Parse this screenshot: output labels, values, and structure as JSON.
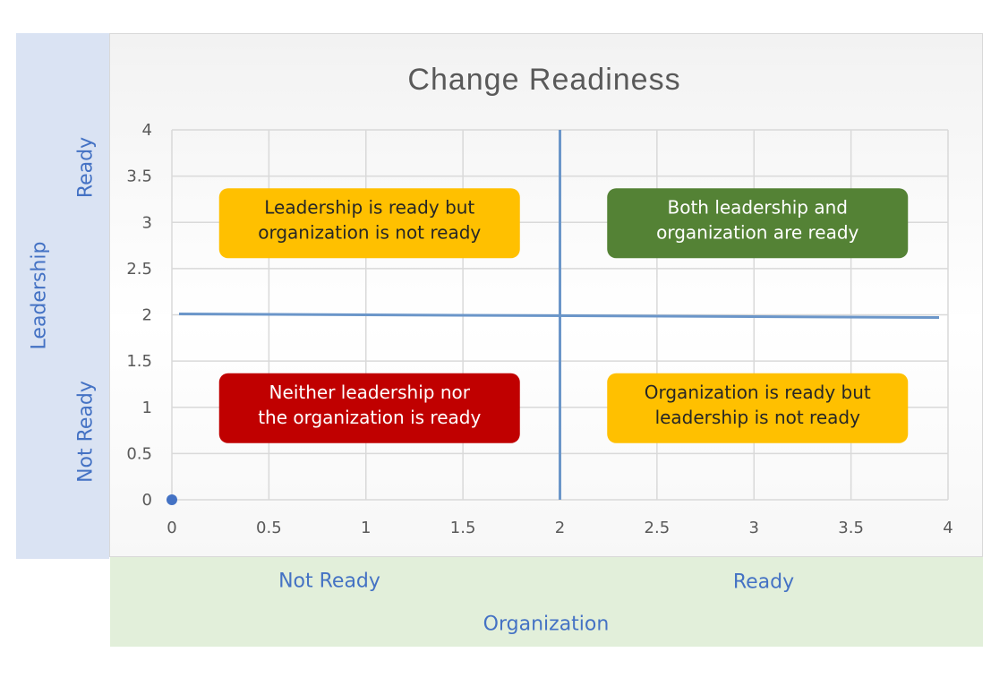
{
  "chart_data": {
    "type": "scatter",
    "title": "Change Readiness",
    "xlabel": "",
    "ylabel": "",
    "xlim": [
      0,
      4
    ],
    "ylim": [
      0,
      4
    ],
    "x_ticks": [
      "0",
      "0.5",
      "1",
      "1.5",
      "2",
      "2.5",
      "3",
      "3.5",
      "4"
    ],
    "y_ticks": [
      "0",
      "0.5",
      "1",
      "1.5",
      "2",
      "2.5",
      "3",
      "3.5",
      "4"
    ],
    "grid": true,
    "points": [
      {
        "x": 0,
        "y": 0
      }
    ],
    "divider_lines": [
      {
        "orientation": "vertical",
        "x": 2
      },
      {
        "orientation": "horizontal",
        "y": 2
      }
    ],
    "quadrants": [
      {
        "text": [
          "Leadership is ready but",
          "organization is not ready"
        ],
        "x": 1,
        "y": 3,
        "color": "#ffc000",
        "text_color": "#262626"
      },
      {
        "text": [
          "Both leadership and",
          "organization are ready"
        ],
        "x": 3,
        "y": 3,
        "color": "#548235",
        "text_color": "#ffffff"
      },
      {
        "text": [
          "Neither leadership nor",
          "the organization is ready"
        ],
        "x": 1,
        "y": 1,
        "color": "#c00000",
        "text_color": "#ffffff"
      },
      {
        "text": [
          "Organization is ready but",
          "leadership is not ready"
        ],
        "x": 3,
        "y": 1,
        "color": "#ffc000",
        "text_color": "#262626"
      }
    ],
    "colors": {
      "line": "#6b96c9",
      "point": "#4472c4",
      "grid": "#d9d9d9",
      "axis_text": "#595959",
      "title": "#595959"
    }
  },
  "labels": {
    "y_axis_title": "Leadership",
    "y_top": "Ready",
    "y_bottom": "Not Ready",
    "x_axis_title": "Organization",
    "x_left": "Not Ready",
    "x_right": "Ready"
  }
}
